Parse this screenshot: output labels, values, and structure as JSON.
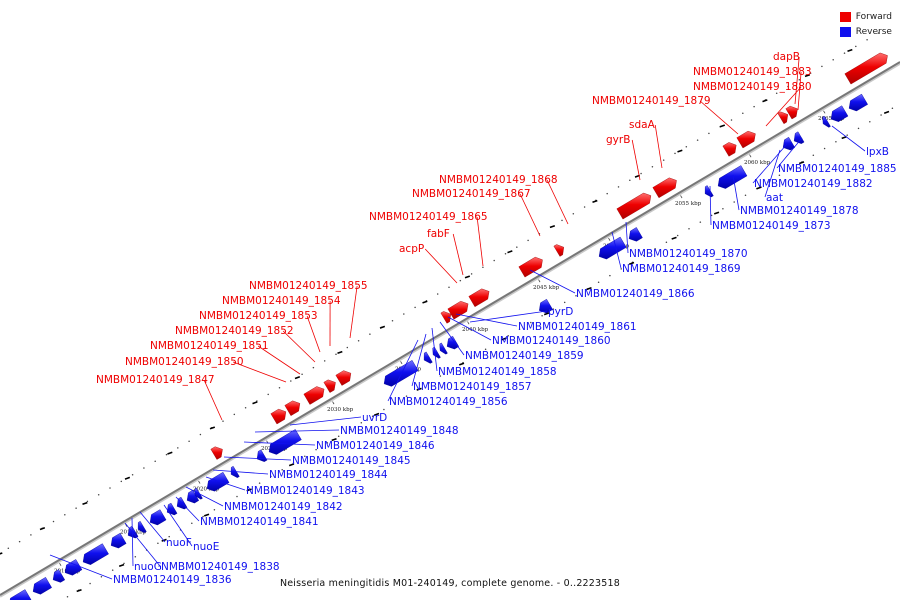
{
  "title": "Neisseria meningitidis M01-240149, complete genome. - 0..2223518",
  "legend": [
    {
      "label": "Forward",
      "color": "#ee0000"
    },
    {
      "label": "Reverse",
      "color": "#1010ee"
    }
  ],
  "colors": {
    "forward": "#ee0000",
    "reverse": "#1010ee",
    "backbone": "#777777"
  },
  "ticks": [
    "2010 kbp",
    "2015 kbp",
    "2020 kbp",
    "2025 kbp",
    "2030 kbp",
    "2035 kbp",
    "2040 kbp",
    "2045 kbp",
    "2050 kbp",
    "2055 kbp",
    "2060 kbp",
    "2065 kbp"
  ],
  "forward_labels": [
    "NMBM01240149_1847",
    "NMBM01240149_1850",
    "NMBM01240149_1851",
    "NMBM01240149_1852",
    "NMBM01240149_1853",
    "NMBM01240149_1854",
    "NMBM01240149_1855",
    "acpP",
    "fabF",
    "NMBM01240149_1865",
    "NMBM01240149_1867",
    "NMBM01240149_1868",
    "gyrB",
    "sdaA",
    "NMBM01240149_1879",
    "NMBM01240149_1880",
    "NMBM01240149_1883",
    "dapB"
  ],
  "reverse_labels": [
    "NMBM01240149_1836",
    "NMBM01240149_1838",
    "nuoG",
    "nuoF",
    "nuoE",
    "NMBM01240149_1841",
    "NMBM01240149_1842",
    "NMBM01240149_1843",
    "NMBM01240149_1844",
    "NMBM01240149_1845",
    "NMBM01240149_1846",
    "NMBM01240149_1848",
    "uvrD",
    "NMBM01240149_1856",
    "NMBM01240149_1857",
    "NMBM01240149_1858",
    "NMBM01240149_1859",
    "NMBM01240149_1860",
    "NMBM01240149_1861",
    "pyrD",
    "NMBM01240149_1866",
    "NMBM01240149_1869",
    "NMBM01240149_1870",
    "NMBM01240149_1873",
    "NMBM01240149_1878",
    "aat",
    "NMBM01240149_1882",
    "NMBM01240149_1885",
    "lpxB"
  ]
}
